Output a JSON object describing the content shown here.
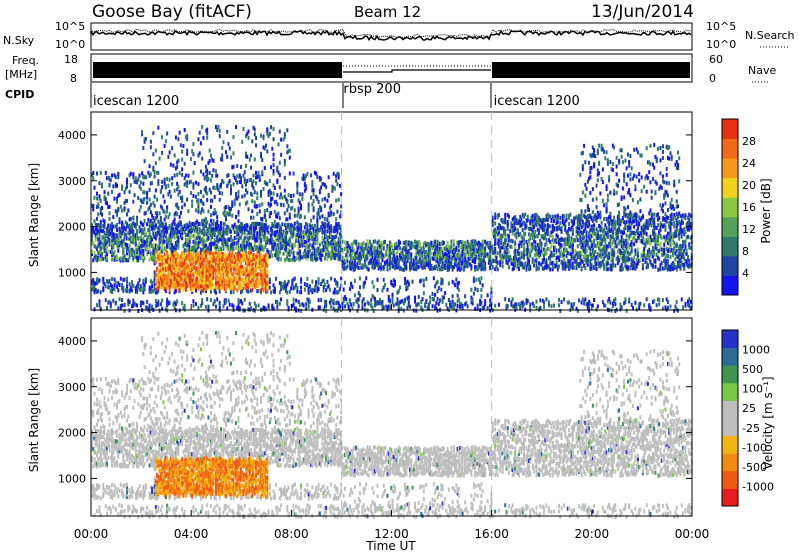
{
  "header": {
    "station": "Goose Bay (fitACF)",
    "beam": "Beam 12",
    "date": "13/Jun/2014"
  },
  "noise_panel": {
    "left_label": "N.Sky",
    "right_label": "N.Search",
    "left_ticks": [
      "10^5",
      "10^0"
    ],
    "right_ticks": [
      "10^5",
      "10^0"
    ]
  },
  "freq_panel": {
    "left_label_1": "Freq.",
    "left_label_2": "[MHz]",
    "right_label": "Nave",
    "left_ticks": [
      "18",
      "8"
    ],
    "right_ticks": [
      "60",
      "0"
    ]
  },
  "cpid": {
    "label": "CPID",
    "segments": [
      {
        "name": "icescan 1200",
        "start": 0,
        "end": 10
      },
      {
        "name": "rbsp 200",
        "start": 10,
        "end": 16
      },
      {
        "name": "icescan 1200",
        "start": 16,
        "end": 24
      }
    ]
  },
  "chart_data": [
    {
      "type": "heatmap",
      "ylabel": "Slant Range [km]",
      "xlabel": "",
      "x_range_hours": [
        0,
        24
      ],
      "ylim": [
        180,
        4500
      ],
      "y_ticks": [
        1000,
        2000,
        3000,
        4000
      ],
      "colorbar_label": "Power [dB]",
      "colorbar_ticks": [
        "4",
        "8",
        "12",
        "16",
        "20",
        "24",
        "28"
      ],
      "colorbar_colors": [
        "#1414f0",
        "#1e46a0",
        "#2f7a6a",
        "#55a05a",
        "#8cc846",
        "#f0d21e",
        "#f59a19",
        "#f06a19",
        "#e63214"
      ]
    },
    {
      "type": "heatmap",
      "ylabel": "Slant Range [km]",
      "xlabel": "Time UT",
      "x_range_hours": [
        0,
        24
      ],
      "ylim": [
        180,
        4500
      ],
      "y_ticks": [
        1000,
        2000,
        3000,
        4000
      ],
      "x_ticks": [
        "00:00",
        "04:00",
        "08:00",
        "12:00",
        "16:00",
        "20:00",
        "00:00"
      ],
      "colorbar_label": "Velocity [m s⁻¹]",
      "colorbar_ticks": [
        "1000",
        "500",
        "100",
        "25",
        "-25",
        "-100",
        "-500",
        "-1000"
      ],
      "colorbar_colors": [
        "#2832c8",
        "#2a6e96",
        "#3c9650",
        "#78c846",
        "#bebebe",
        "#bebebe",
        "#f0b414",
        "#f08c14",
        "#f05a14",
        "#e61e1e"
      ]
    }
  ]
}
